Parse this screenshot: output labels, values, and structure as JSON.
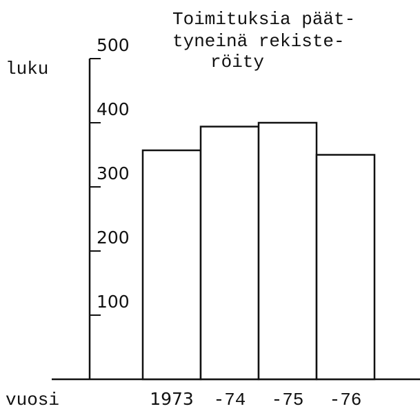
{
  "chart_data": {
    "type": "bar",
    "title": [
      "Toimituksia päät-",
      "tyneinä rekiste-",
      "röity"
    ],
    "y_label": "luku",
    "x_label": "vuosi",
    "categories": [
      "1973",
      "-74",
      "-75",
      "-76"
    ],
    "values": [
      357,
      394,
      400,
      350
    ],
    "color": "#ffffff",
    "ylim": [
      0,
      500
    ],
    "yticks": [
      100,
      200,
      300,
      400,
      500
    ],
    "grid": false
  }
}
